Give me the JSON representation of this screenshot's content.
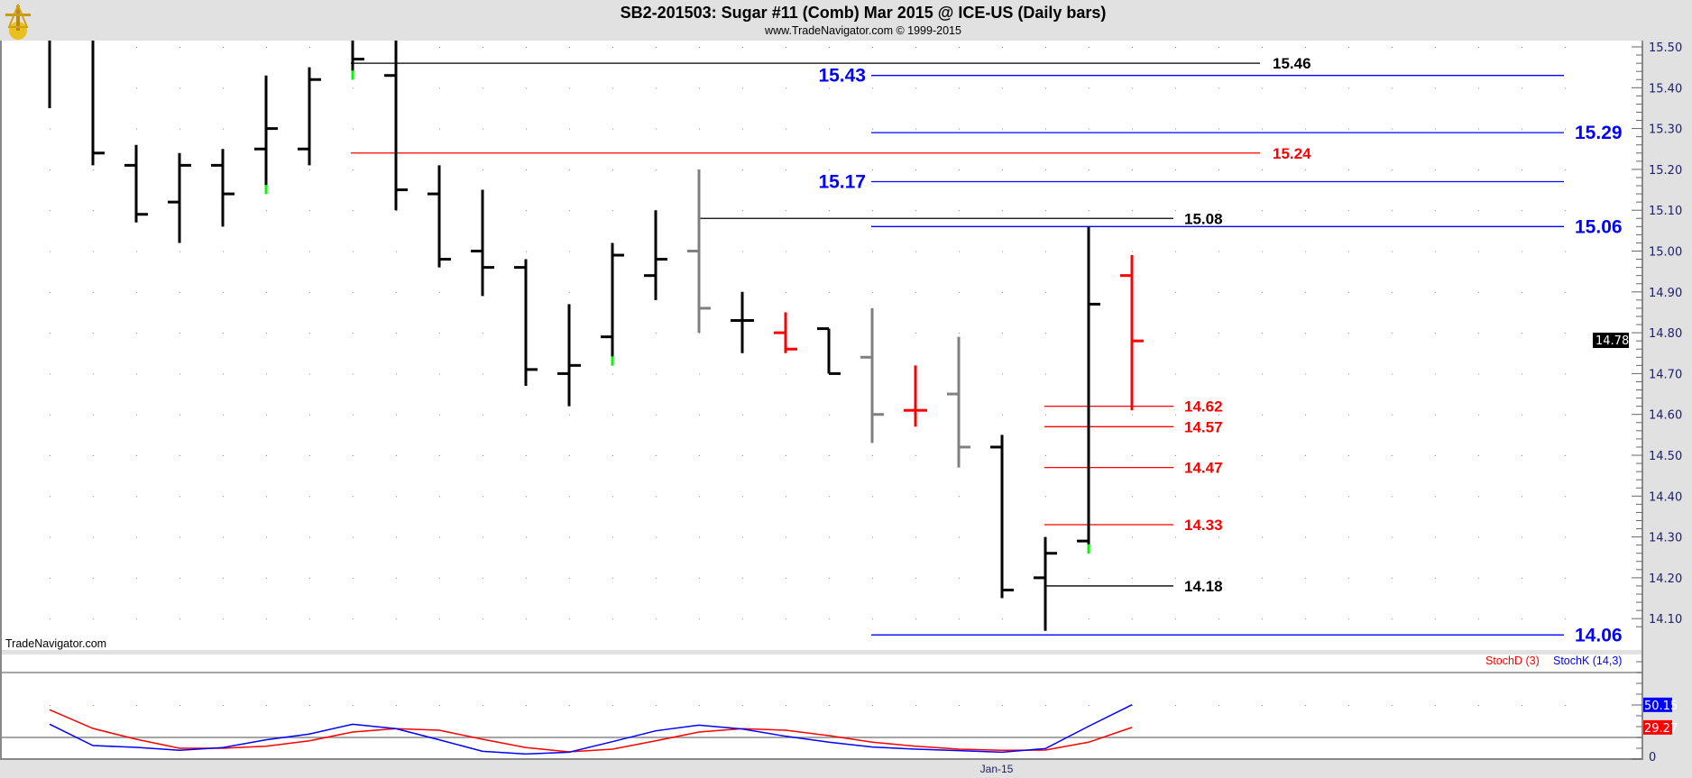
{
  "header": {
    "title": "SB2-201503:  Sugar #11 (Comb) Mar 2015 @ ICE-US  (Daily bars)",
    "subtitle": "www.TradeNavigator.com © 1999-2015",
    "logo_icon": "sextant-logo-icon"
  },
  "watermark": "TradeNavigator.com",
  "colors": {
    "up": "#000000",
    "neutral": "#808080",
    "down": "#ff0000",
    "marker": "#00ff00",
    "level_blue": "#0000ff",
    "level_red": "#ff0000",
    "level_black": "#000000"
  },
  "chart_data": [
    {
      "type": "ohlc",
      "title": "SB2-201503:  Sugar #11 (Comb) Mar 2015 @ ICE-US  (Daily bars)",
      "ylim": [
        14.04,
        15.52
      ],
      "yticks": [
        "15.50",
        "15.40",
        "15.30",
        "15.20",
        "15.10",
        "15.00",
        "14.90",
        "14.80",
        "14.70",
        "14.60",
        "14.50",
        "14.40",
        "14.30",
        "14.20",
        "14.10"
      ],
      "grid": "dotted",
      "last_price": "14.78",
      "xlabels": [
        {
          "label": "Jan-15",
          "bar": 22
        }
      ],
      "bars": [
        {
          "o": null,
          "h": null,
          "l": 15.35,
          "c": null,
          "color": "up"
        },
        {
          "o": null,
          "h": null,
          "l": 15.21,
          "c": 15.24,
          "color": "up"
        },
        {
          "o": 15.21,
          "h": 15.26,
          "l": 15.07,
          "c": 15.09,
          "color": "up"
        },
        {
          "o": 15.12,
          "h": 15.24,
          "l": 15.02,
          "c": 15.21,
          "color": "up"
        },
        {
          "o": 15.21,
          "h": 15.25,
          "l": 15.06,
          "c": 15.14,
          "color": "up"
        },
        {
          "o": 15.25,
          "h": 15.43,
          "l": 15.14,
          "c": 15.3,
          "color": "up",
          "marker": true
        },
        {
          "o": 15.25,
          "h": 15.45,
          "l": 15.21,
          "c": 15.42,
          "color": "up"
        },
        {
          "o": null,
          "h": null,
          "l": 15.42,
          "c": 15.47,
          "color": "up",
          "marker": true
        },
        {
          "o": 15.43,
          "h": null,
          "l": 15.1,
          "c": 15.15,
          "color": "up"
        },
        {
          "o": 15.14,
          "h": 15.21,
          "l": 14.96,
          "c": 14.98,
          "color": "up"
        },
        {
          "o": 15.0,
          "h": 15.15,
          "l": 14.89,
          "c": 14.96,
          "color": "up"
        },
        {
          "o": 14.96,
          "h": 14.98,
          "l": 14.67,
          "c": 14.71,
          "color": "up"
        },
        {
          "o": 14.7,
          "h": 14.87,
          "l": 14.62,
          "c": 14.72,
          "color": "up"
        },
        {
          "o": 14.79,
          "h": 15.02,
          "l": 14.72,
          "c": 14.99,
          "color": "up",
          "marker": true
        },
        {
          "o": 14.94,
          "h": 15.1,
          "l": 14.88,
          "c": 14.98,
          "color": "up"
        },
        {
          "o": 15.0,
          "h": 15.2,
          "l": 14.8,
          "c": 14.86,
          "color": "neutral"
        },
        {
          "o": 14.83,
          "h": 14.9,
          "l": 14.75,
          "c": 14.83,
          "color": "up"
        },
        {
          "o": 14.8,
          "h": 14.85,
          "l": 14.75,
          "c": 14.76,
          "color": "down"
        },
        {
          "o": 14.81,
          "h": 14.81,
          "l": 14.7,
          "c": 14.7,
          "color": "up"
        },
        {
          "o": 14.74,
          "h": 14.86,
          "l": 14.53,
          "c": 14.6,
          "color": "neutral"
        },
        {
          "o": 14.61,
          "h": 14.72,
          "l": 14.57,
          "c": 14.61,
          "color": "down"
        },
        {
          "o": 14.65,
          "h": 14.79,
          "l": 14.47,
          "c": 14.52,
          "color": "neutral"
        },
        {
          "o": 14.52,
          "h": 14.55,
          "l": 14.15,
          "c": 14.17,
          "color": "up"
        },
        {
          "o": 14.2,
          "h": 14.3,
          "l": 14.07,
          "c": 14.26,
          "color": "up"
        },
        {
          "o": 14.29,
          "h": 15.06,
          "l": 14.26,
          "c": 14.87,
          "color": "up",
          "marker": true
        },
        {
          "o": 14.94,
          "h": 14.99,
          "l": 14.61,
          "c": 14.78,
          "color": "down"
        }
      ],
      "levels": [
        {
          "price": 15.46,
          "label": "15.46",
          "color": "level_black"
        },
        {
          "price": 15.43,
          "label": "15.43",
          "color": "level_blue"
        },
        {
          "price": 15.29,
          "label": "15.29",
          "color": "level_blue"
        },
        {
          "price": 15.24,
          "label": "15.24",
          "color": "level_red"
        },
        {
          "price": 15.17,
          "label": "15.17",
          "color": "level_blue"
        },
        {
          "price": 15.08,
          "label": "15.08",
          "color": "level_black"
        },
        {
          "price": 15.06,
          "label": "15.06",
          "color": "level_blue"
        },
        {
          "price": 14.62,
          "label": "14.62",
          "color": "level_red"
        },
        {
          "price": 14.57,
          "label": "14.57",
          "color": "level_red"
        },
        {
          "price": 14.47,
          "label": "14.47",
          "color": "level_red"
        },
        {
          "price": 14.33,
          "label": "14.33",
          "color": "level_red"
        },
        {
          "price": 14.18,
          "label": "14.18",
          "color": "level_black"
        },
        {
          "price": 14.06,
          "label": "14.06",
          "color": "level_blue"
        }
      ]
    },
    {
      "type": "line",
      "ylim": [
        0,
        100
      ],
      "reference_lines": [
        20,
        80
      ],
      "yticks": [
        "0"
      ],
      "series": [
        {
          "name": "StochD (3)",
          "color": "#ff0000",
          "last_label": "29.27",
          "values": [
            45.6,
            28.3,
            18.3,
            10,
            10,
            11.9,
            16.9,
            25,
            28.1,
            26.7,
            18.3,
            10.6,
            6.7,
            9.2,
            16.9,
            25,
            28.1,
            26.7,
            21.7,
            15.6,
            11.9,
            9.2,
            8.1,
            8.3,
            15.6,
            29.27
          ]
        },
        {
          "name": "StochK (14,3)",
          "color": "#0000ff",
          "last_label": "50.15",
          "values": [
            32.2,
            12.5,
            10.8,
            8.1,
            10.6,
            17.8,
            23.1,
            32.2,
            28.1,
            17.8,
            7.2,
            4.7,
            6.4,
            16.1,
            26.1,
            31.4,
            27.8,
            21.1,
            15.6,
            11.1,
            9.2,
            7.8,
            6.4,
            9.7,
            30.3,
            50.15
          ]
        }
      ]
    }
  ]
}
